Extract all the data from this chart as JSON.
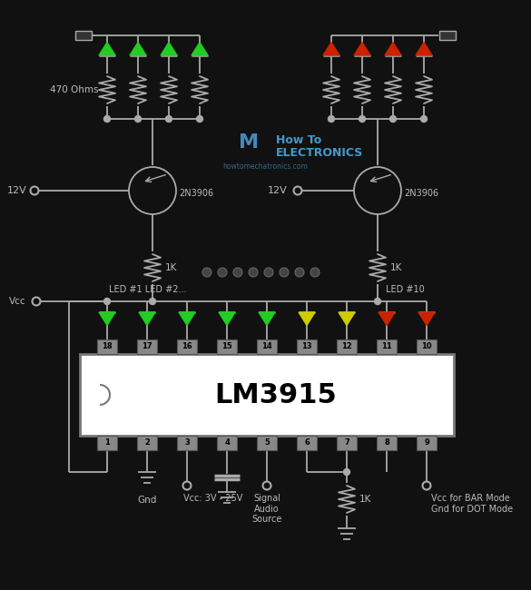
{
  "bg": "#111111",
  "lc": "#aaaaaa",
  "tc": "#bbbbbb",
  "green": "#22cc22",
  "yellow": "#cccc00",
  "red": "#cc2200",
  "white": "#ffffff",
  "gray_pin": "#999999",
  "ic_label": "LM3915",
  "label_470": "470 Ohms",
  "label_12vL": "12V",
  "label_12vR": "12V",
  "label_vcc": "Vcc",
  "label_gnd": "Gnd",
  "label_vcc_range": "Vcc: 3V - 25V",
  "label_signal": "Signal\nAudio\nSource",
  "label_1k_bot": "1K",
  "label_bar_dot": "Vcc for BAR Mode\nGnd for DOT Mode",
  "label_2n_L": "2N3906",
  "label_2n_R": "2N3906",
  "label_1k_L": "1K",
  "label_1k_R": "1K",
  "label_led12": "LED #1 LED #2...",
  "label_led10": "LED #10",
  "pin_top": [
    "18",
    "17",
    "16",
    "15",
    "14",
    "13",
    "12",
    "11",
    "10"
  ],
  "pin_bot": [
    "1",
    "2",
    "3",
    "4",
    "5",
    "6",
    "7",
    "8",
    "9"
  ],
  "led_colors_ic": [
    "#22cc22",
    "#22cc22",
    "#22cc22",
    "#22cc22",
    "#22cc22",
    "#cccc00",
    "#cccc00",
    "#cc2200",
    "#cc2200"
  ],
  "watermark_line1": "How To",
  "watermark_line2": "Electronics",
  "wm_url": "howtomechatronics.com"
}
